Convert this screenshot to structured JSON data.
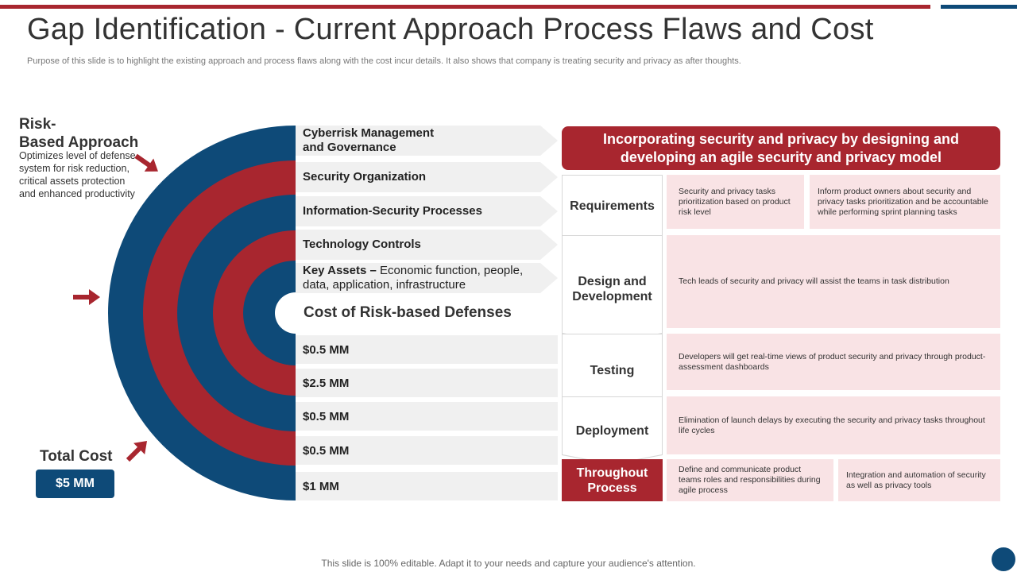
{
  "title": "Gap Identification - Current Approach Process Flaws and Cost",
  "subtitle": "Purpose of this slide is to highlight the existing approach and process flaws along with the cost incur details. It also shows that company is treating security and privacy as after thoughts.",
  "left": {
    "risk_title_line1": "Risk-",
    "risk_title_line2": "Based Approach",
    "risk_desc": "Optimizes level of defense system for risk reduction, critical assets protection and enhanced productivity",
    "total_label": "Total Cost",
    "total_value": "$5 MM"
  },
  "layers": [
    {
      "label": "Cyberrisk Management and Governance"
    },
    {
      "label": "Security Organization"
    },
    {
      "label": "Information-Security Processes"
    },
    {
      "label": "Technology Controls"
    },
    {
      "label_bold": "Key Assets –",
      "label_rest": " Economic function, people, data, application, infrastructure"
    }
  ],
  "costs": {
    "heading": "Cost of Risk-based Defenses",
    "values": [
      "$0.5 MM",
      "$2.5 MM",
      "$0.5 MM",
      "$0.5 MM",
      "$1 MM"
    ]
  },
  "right": {
    "header": "Incorporating security and privacy by designing and developing an agile security and privacy model",
    "phases": [
      {
        "name": "Requirements",
        "cells": [
          "Security and privacy tasks prioritization based on product risk level",
          "Inform product owners about security and privacy tasks prioritization and be accountable while performing sprint planning tasks"
        ]
      },
      {
        "name": "Design and Development",
        "cells": [
          "Tech leads of security and privacy will assist the teams in task distribution"
        ]
      },
      {
        "name": "Testing",
        "cells": [
          "Developers will get real-time views of product security and privacy through product-assessment dashboards"
        ]
      },
      {
        "name": "Deployment",
        "cells": [
          "Elimination  of launch delays by executing the security and privacy tasks throughout life cycles"
        ]
      },
      {
        "name": "Throughout Process",
        "cells": [
          "Define and communicate product teams roles and responsibilities during agile process",
          "Integration and automation of security as well as privacy tools"
        ]
      }
    ]
  },
  "footer": "This slide is 100% editable. Adapt it to your needs and capture your audience's attention.",
  "colors": {
    "red": "#a8262f",
    "blue": "#0e4a78",
    "light_gray": "#f0f0f0",
    "pink": "#f9e3e5"
  }
}
